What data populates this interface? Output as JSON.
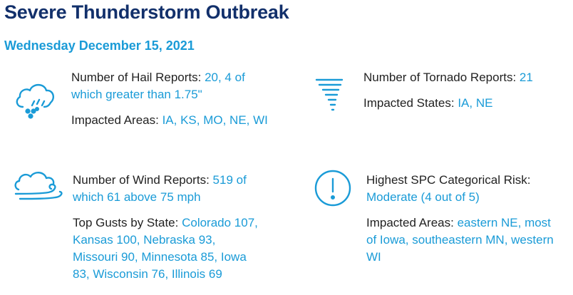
{
  "title": "Severe Thunderstorm Outbreak",
  "date": "Wednesday December 15, 2021",
  "colors": {
    "title": "#12306b",
    "accent": "#1a9bd7",
    "text": "#222222"
  },
  "hail": {
    "icon": "hail-cloud-icon",
    "reports_label": "Number of Hail Reports:",
    "reports_value": "20, 4 of which greater than 1.75\"",
    "areas_label": "Impacted Areas:",
    "areas_value": "IA, KS, MO, NE, WI"
  },
  "tornado": {
    "icon": "tornado-icon",
    "reports_label": "Number of Tornado Reports:",
    "reports_value": "21",
    "states_label": "Impacted States:",
    "states_value": "IA, NE"
  },
  "wind": {
    "icon": "wind-cloud-icon",
    "reports_label": "Number of Wind Reports:",
    "reports_value": "519 of which 61 above 75 mph",
    "gusts_label": "Top Gusts by State:",
    "gusts_value": "Colorado 107, Kansas 100, Nebraska 93, Missouri 90, Minnesota 85, Iowa 83, Wisconsin 76, Illinois 69"
  },
  "risk": {
    "icon": "exclamation-circle-icon",
    "risk_label": "Highest SPC Categorical Risk:",
    "risk_value": "Moderate (4 out of 5)",
    "areas_label": "Impacted Areas:",
    "areas_value": "eastern NE, most of Iowa, southeastern MN, western WI"
  }
}
